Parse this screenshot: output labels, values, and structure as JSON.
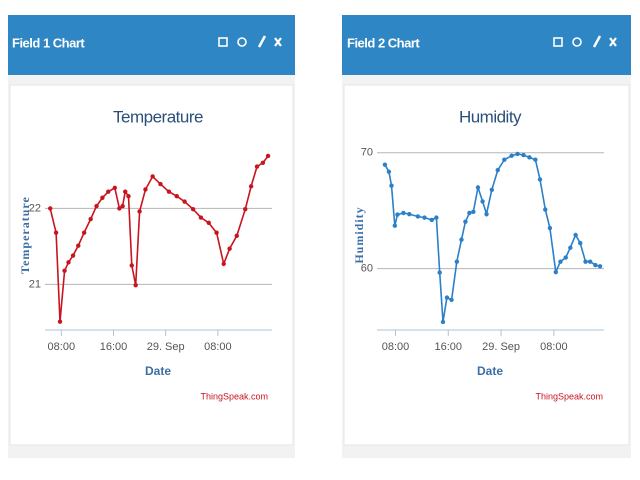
{
  "panels": [
    {
      "title": "Field 1 Chart"
    },
    {
      "title": "Field 2 Chart"
    }
  ],
  "chart_data": [
    {
      "type": "line",
      "title": "Temperature",
      "y_label": "Temperature",
      "x_label": "Date",
      "credit": "ThingSpeak.com",
      "color": "#c8141e",
      "x": [
        6.3,
        7.2,
        7.8,
        8.5,
        9.1,
        9.8,
        10.6,
        11.5,
        12.5,
        13.4,
        14.3,
        15.2,
        16.2,
        16.9,
        17.4,
        17.8,
        18.3,
        18.8,
        19.4,
        20.0,
        20.9,
        22.0,
        23.2,
        24.5,
        25.7,
        26.9,
        28.2,
        29.4,
        30.6,
        31.8,
        32.9,
        33.8,
        34.9,
        36.2,
        37.1,
        38.0,
        38.9,
        39.7
      ],
      "values": [
        22.0,
        21.68,
        20.51,
        21.18,
        21.29,
        21.38,
        21.51,
        21.68,
        21.86,
        22.03,
        22.14,
        22.22,
        22.27,
        22.0,
        22.03,
        22.22,
        22.16,
        21.25,
        20.99,
        21.96,
        22.25,
        22.42,
        22.32,
        22.22,
        22.16,
        22.09,
        21.99,
        21.88,
        21.81,
        21.68,
        21.27,
        21.47,
        21.64,
        21.99,
        22.29,
        22.55,
        22.6,
        22.69
      ],
      "xlim": [
        5.5,
        40.3
      ],
      "ylim": [
        20.4,
        22.9
      ],
      "xticks": [
        {
          "value": 8,
          "label": "08:00"
        },
        {
          "value": 16,
          "label": "16:00"
        },
        {
          "value": 24,
          "label": "29. Sep"
        },
        {
          "value": 32,
          "label": "08:00"
        }
      ],
      "yticks": [
        21,
        22
      ],
      "grid": true
    },
    {
      "type": "line",
      "title": "Humidity",
      "y_label": "Humidity",
      "x_label": "Date",
      "credit": "ThingSpeak.com",
      "color": "#2b80c8",
      "x": [
        6.4,
        7.0,
        7.4,
        7.9,
        8.3,
        9.2,
        10.1,
        11.4,
        12.4,
        13.5,
        14.2,
        14.7,
        15.2,
        15.8,
        16.5,
        17.3,
        18.0,
        18.6,
        19.2,
        19.8,
        20.5,
        21.2,
        21.8,
        22.6,
        23.5,
        24.5,
        25.6,
        26.5,
        27.4,
        28.3,
        29.2,
        29.9,
        30.7,
        31.4,
        32.3,
        33.0,
        33.8,
        34.5,
        35.3,
        36.0,
        36.8,
        37.5,
        38.3,
        39.0
      ],
      "values": [
        68.97,
        68.36,
        67.16,
        63.7,
        64.66,
        64.8,
        64.7,
        64.5,
        64.4,
        64.2,
        64.4,
        59.66,
        55.4,
        57.5,
        57.3,
        60.6,
        62.5,
        64.05,
        64.8,
        64.9,
        67.0,
        65.8,
        64.7,
        66.8,
        68.5,
        69.4,
        69.74,
        69.9,
        69.8,
        69.6,
        69.4,
        67.7,
        65.1,
        63.5,
        59.7,
        60.6,
        60.95,
        61.8,
        62.9,
        62.2,
        60.6,
        60.6,
        60.3,
        60.2
      ],
      "xlim": [
        5.2,
        39.6
      ],
      "ylim": [
        54.7,
        71.1
      ],
      "xticks": [
        {
          "value": 8,
          "label": "08:00"
        },
        {
          "value": 16,
          "label": "16:00"
        },
        {
          "value": 24,
          "label": "29. Sep"
        },
        {
          "value": 32,
          "label": "08:00"
        }
      ],
      "yticks": [
        60,
        70
      ],
      "grid": true
    }
  ]
}
